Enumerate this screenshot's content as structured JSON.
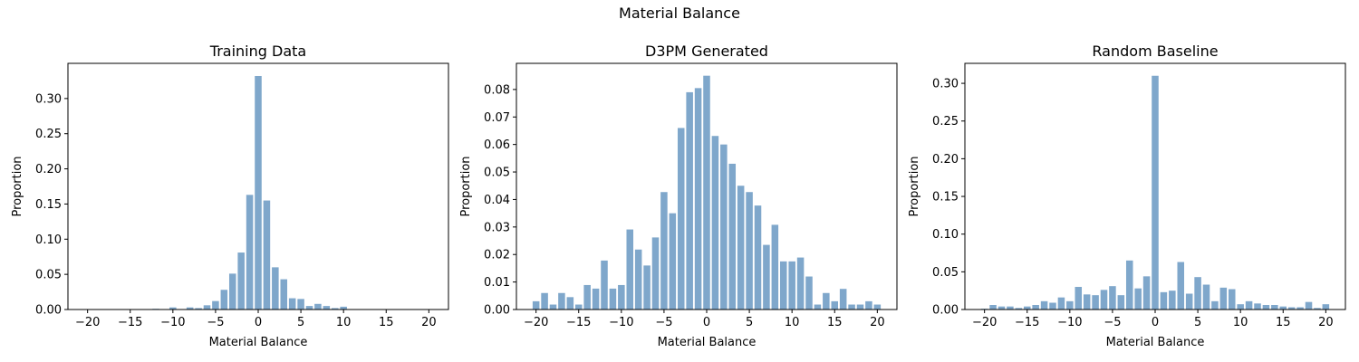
{
  "figure": {
    "title": "Material Balance"
  },
  "colors": {
    "bar": "#7fa7cb",
    "axis": "#000000"
  },
  "chart_data": [
    {
      "type": "bar",
      "title": "Training Data",
      "xlabel": "Material Balance",
      "ylabel": "Proportion",
      "xlim": [
        -22.3,
        22.3
      ],
      "ylim": [
        0,
        0.35
      ],
      "xticks": [
        -20,
        -15,
        -10,
        -5,
        0,
        5,
        10,
        15,
        20
      ],
      "yticks": [
        0.0,
        0.05,
        0.1,
        0.15,
        0.2,
        0.25,
        0.3
      ],
      "ytick_labels": [
        "0.00",
        "0.05",
        "0.10",
        "0.15",
        "0.20",
        "0.25",
        "0.30"
      ],
      "grid": false,
      "x": [
        -20,
        -19,
        -18,
        -17,
        -16,
        -15,
        -14,
        -13,
        -12,
        -11,
        -10,
        -9,
        -8,
        -7,
        -6,
        -5,
        -4,
        -3,
        -2,
        -1,
        0,
        1,
        2,
        3,
        4,
        5,
        6,
        7,
        8,
        9,
        10,
        11,
        12,
        13,
        14,
        15,
        16,
        17,
        18,
        19,
        20
      ],
      "values": [
        0,
        0,
        0,
        0,
        0,
        0,
        0,
        0,
        0.001,
        0,
        0.003,
        0,
        0.003,
        0.002,
        0.006,
        0.012,
        0.028,
        0.051,
        0.081,
        0.163,
        0.332,
        0.155,
        0.06,
        0.043,
        0.016,
        0.015,
        0.005,
        0.008,
        0.005,
        0.002,
        0.004,
        0,
        0,
        0,
        0,
        0,
        0,
        0,
        0,
        0,
        0
      ]
    },
    {
      "type": "bar",
      "title": "D3PM Generated",
      "xlabel": "Material Balance",
      "ylabel": "Proportion",
      "xlim": [
        -22.3,
        22.3
      ],
      "ylim": [
        0,
        0.0895
      ],
      "xticks": [
        -20,
        -15,
        -10,
        -5,
        0,
        5,
        10,
        15,
        20
      ],
      "yticks": [
        0.0,
        0.01,
        0.02,
        0.03,
        0.04,
        0.05,
        0.06,
        0.07,
        0.08
      ],
      "ytick_labels": [
        "0.00",
        "0.01",
        "0.02",
        "0.03",
        "0.04",
        "0.05",
        "0.06",
        "0.07",
        "0.08"
      ],
      "grid": false,
      "x": [
        -20,
        -19,
        -18,
        -17,
        -16,
        -15,
        -14,
        -13,
        -12,
        -11,
        -10,
        -9,
        -8,
        -7,
        -6,
        -5,
        -4,
        -3,
        -2,
        -1,
        0,
        1,
        2,
        3,
        4,
        5,
        6,
        7,
        8,
        9,
        10,
        11,
        12,
        13,
        14,
        15,
        16,
        17,
        18,
        19,
        20
      ],
      "values": [
        0.003,
        0.006,
        0.0018,
        0.006,
        0.0045,
        0.0018,
        0.0089,
        0.0076,
        0.0178,
        0.0076,
        0.0089,
        0.0291,
        0.0218,
        0.016,
        0.0262,
        0.0427,
        0.035,
        0.066,
        0.079,
        0.0805,
        0.085,
        0.0631,
        0.06,
        0.053,
        0.045,
        0.0427,
        0.0378,
        0.0235,
        0.0308,
        0.0175,
        0.0175,
        0.0189,
        0.012,
        0.0018,
        0.006,
        0.003,
        0.0075,
        0.0018,
        0.0018,
        0.003,
        0.0018
      ]
    },
    {
      "type": "bar",
      "title": "Random Baseline",
      "xlabel": "Material Balance",
      "ylabel": "Proportion",
      "xlim": [
        -22.3,
        22.3
      ],
      "ylim": [
        0,
        0.3265
      ],
      "xticks": [
        -20,
        -15,
        -10,
        -5,
        0,
        5,
        10,
        15,
        20
      ],
      "yticks": [
        0.0,
        0.05,
        0.1,
        0.15,
        0.2,
        0.25,
        0.3
      ],
      "ytick_labels": [
        "0.00",
        "0.05",
        "0.10",
        "0.15",
        "0.20",
        "0.25",
        "0.30"
      ],
      "grid": false,
      "x": [
        -20,
        -19,
        -18,
        -17,
        -16,
        -15,
        -14,
        -13,
        -12,
        -11,
        -10,
        -9,
        -8,
        -7,
        -6,
        -5,
        -4,
        -3,
        -2,
        -1,
        0,
        1,
        2,
        3,
        4,
        5,
        6,
        7,
        8,
        9,
        10,
        11,
        12,
        13,
        14,
        15,
        16,
        17,
        18,
        19,
        20
      ],
      "values": [
        0.001,
        0.006,
        0.004,
        0.004,
        0.002,
        0.004,
        0.006,
        0.011,
        0.009,
        0.016,
        0.011,
        0.03,
        0.02,
        0.019,
        0.026,
        0.031,
        0.019,
        0.065,
        0.028,
        0.044,
        0.31,
        0.023,
        0.025,
        0.063,
        0.021,
        0.043,
        0.033,
        0.011,
        0.029,
        0.027,
        0.007,
        0.011,
        0.008,
        0.006,
        0.006,
        0.004,
        0.003,
        0.003,
        0.01,
        0.002,
        0.007
      ]
    }
  ]
}
